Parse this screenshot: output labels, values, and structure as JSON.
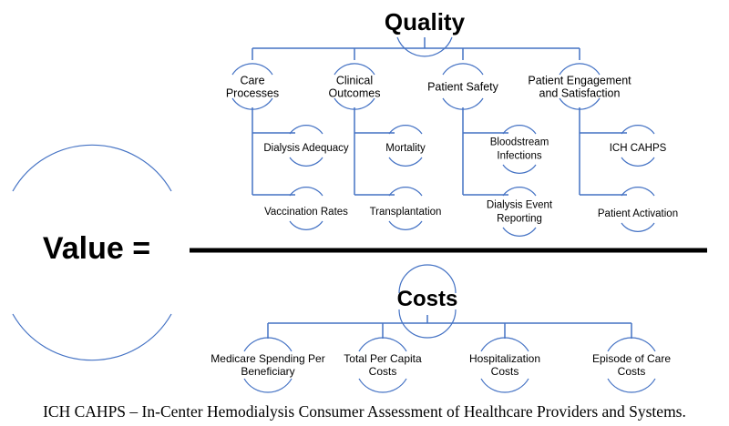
{
  "value_label": "Value =",
  "quality": {
    "title": "Quality",
    "categories": [
      {
        "label": [
          "Care",
          "Processes"
        ],
        "items": [
          [
            "Dialysis Adequacy"
          ],
          [
            "Vaccination Rates"
          ]
        ]
      },
      {
        "label": [
          "Clinical",
          "Outcomes"
        ],
        "items": [
          [
            "Mortality"
          ],
          [
            "Transplantation"
          ]
        ]
      },
      {
        "label": [
          "Patient Safety"
        ],
        "items": [
          [
            "Bloodstream",
            "Infections"
          ],
          [
            "Dialysis Event",
            "Reporting"
          ]
        ]
      },
      {
        "label": [
          "Patient Engagement",
          "and Satisfaction"
        ],
        "items": [
          [
            "ICH CAHPS"
          ],
          [
            "Patient Activation"
          ]
        ]
      }
    ]
  },
  "costs": {
    "title": "Costs",
    "items": [
      [
        "Medicare Spending Per",
        "Beneficiary"
      ],
      [
        "Total Per Capita",
        "Costs"
      ],
      [
        "Hospitalization",
        "Costs"
      ],
      [
        "Episode of Care",
        "Costs"
      ]
    ]
  },
  "footnote": "ICH CAHPS – In-Center Hemodialysis Consumer Assessment of Healthcare Providers and Systems.",
  "colors": {
    "connector": "#4472c4",
    "fraction_bar": "#000000",
    "text": "#000000"
  }
}
